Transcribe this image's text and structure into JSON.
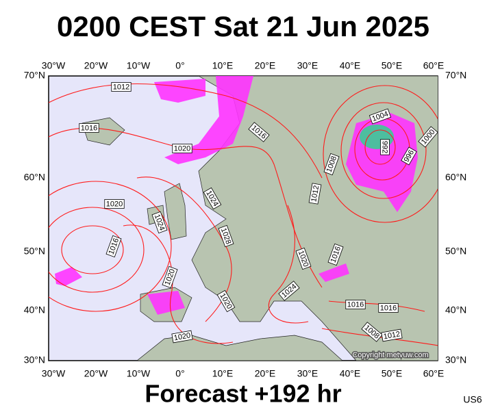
{
  "header": {
    "title": "0200 CEST Sat 21 Jun 2025"
  },
  "map": {
    "lon_labels": [
      "30°W",
      "20°W",
      "10°W",
      "0°",
      "10°E",
      "20°E",
      "30°E",
      "40°E",
      "50°E",
      "60°E"
    ],
    "lat_labels": [
      "70°N",
      "60°N",
      "50°N",
      "40°N",
      "30°N"
    ],
    "isobar_labels": [
      "1012",
      "1016",
      "1020",
      "1016",
      "1004",
      "992",
      "1000",
      "996",
      "1008",
      "1012",
      "1020",
      "1024",
      "1024",
      "1028",
      "1016",
      "1020",
      "1016",
      "1020",
      "1024",
      "1020",
      "1016",
      "1016",
      "1008",
      "1012",
      "1020"
    ],
    "copyright": "Copyright metvuw.com"
  },
  "footer": {
    "forecast": "Forecast +192 hr",
    "model": "US6"
  }
}
